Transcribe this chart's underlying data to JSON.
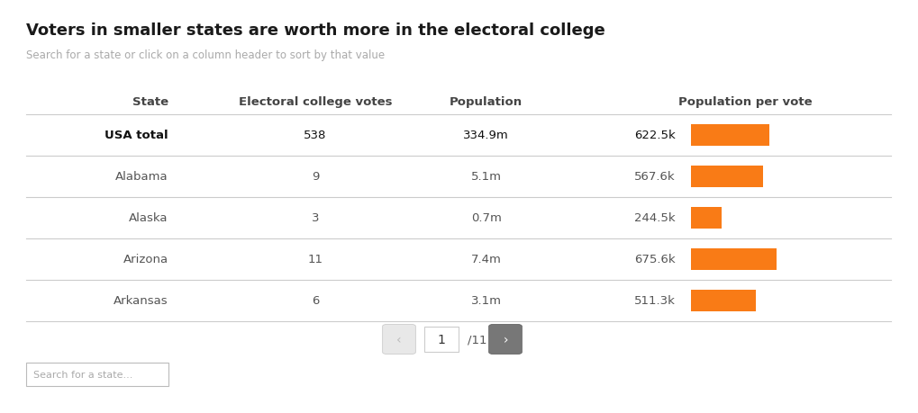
{
  "title": "Voters in smaller states are worth more in the electoral college",
  "subtitle": "Search for a state or click on a column header to sort by that value",
  "columns": [
    "State",
    "Electoral college votes",
    "Population",
    "Population per vote"
  ],
  "rows": [
    {
      "state": "USA total",
      "votes": "538",
      "population": "334.9m",
      "ppv": "622.5k",
      "ppv_val": 622.5,
      "bold": true
    },
    {
      "state": "Alabama",
      "votes": "9",
      "population": "5.1m",
      "ppv": "567.6k",
      "ppv_val": 567.6,
      "bold": false
    },
    {
      "state": "Alaska",
      "votes": "3",
      "population": "0.7m",
      "ppv": "244.5k",
      "ppv_val": 244.5,
      "bold": false
    },
    {
      "state": "Arizona",
      "votes": "11",
      "population": "7.4m",
      "ppv": "675.6k",
      "ppv_val": 675.6,
      "bold": false
    },
    {
      "state": "Arkansas",
      "votes": "6",
      "population": "3.1m",
      "ppv": "511.3k",
      "ppv_val": 511.3,
      "bold": false
    }
  ],
  "bar_color": "#F97B16",
  "bar_max": 675.6,
  "background_color": "#ffffff",
  "title_color": "#1a1a1a",
  "subtitle_color": "#aaaaaa",
  "header_color": "#444444",
  "data_color": "#555555",
  "bold_color": "#111111",
  "divider_color": "#cccccc",
  "search_label": "Search for a state..."
}
